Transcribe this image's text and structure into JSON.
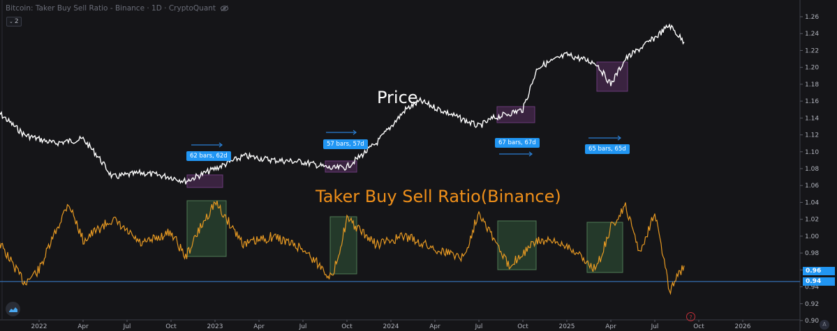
{
  "header": {
    "title": "Bitcoin: Taker Buy Sell Ratio - Binance · 1D · CryptoQuant",
    "legend_count": "2",
    "icons": [
      "chevron-down-icon",
      "eye-off-icon"
    ]
  },
  "annotations": {
    "price_label": "Price",
    "ratio_label": "Taker Buy Sell Ratio(Binance)",
    "measure_badges": [
      {
        "label": "62 bars, 62d"
      },
      {
        "label": "57 bars, 57d"
      },
      {
        "label": "67 bars, 67d"
      },
      {
        "label": "65 bars, 65d"
      }
    ]
  },
  "price_scale": {
    "tags": [
      {
        "label": "0.96"
      },
      {
        "label": "0.94"
      }
    ],
    "auto_label": "A"
  },
  "help_label": "?",
  "colors": {
    "background": "#151518",
    "price_line": "#ffffff",
    "ratio_line": "#e89a22",
    "accent_blue": "#2196f3",
    "price_box": "#3a2340",
    "ratio_box": "#24392a",
    "hline": "#3b82d6"
  },
  "chart_data": {
    "type": "line",
    "title": "Bitcoin: Taker Buy Sell Ratio - Binance · 1D · CryptoQuant",
    "xlabel": "",
    "ylabel": "",
    "ylim": [
      0.9,
      1.27
    ],
    "y_ticks": [
      "1.26",
      "1.24",
      "1.22",
      "1.20",
      "1.18",
      "1.16",
      "1.14",
      "1.12",
      "1.10",
      "1.08",
      "1.06",
      "1.04",
      "1.02",
      "1.00",
      "0.98",
      "0.96",
      "0.94",
      "0.92",
      "0.90"
    ],
    "x_ticks": [
      "2022",
      "Apr",
      "Jul",
      "Oct",
      "2023",
      "Apr",
      "Jul",
      "Oct",
      "2024",
      "Apr",
      "Jul",
      "Oct",
      "2025",
      "Apr",
      "Jul",
      "Oct",
      "2026"
    ],
    "grid": false,
    "legend": "none",
    "horizontal_line": 0.945,
    "series": [
      {
        "name": "Price (scaled overlay)",
        "x": [
          "2021-10",
          "2021-12",
          "2022-02",
          "2022-04",
          "2022-05",
          "2022-06",
          "2022-08",
          "2022-10",
          "2022-11",
          "2023-01",
          "2023-03",
          "2023-05",
          "2023-07",
          "2023-09",
          "2023-10",
          "2023-12",
          "2024-02",
          "2024-03",
          "2024-05",
          "2024-07",
          "2024-08",
          "2024-10",
          "2024-11",
          "2025-01",
          "2025-03",
          "2025-04",
          "2025-05",
          "2025-07",
          "2025-08",
          "2025-09"
        ],
        "values": [
          1.15,
          1.12,
          1.11,
          1.115,
          1.095,
          1.07,
          1.075,
          1.07,
          1.065,
          1.08,
          1.095,
          1.09,
          1.088,
          1.08,
          1.082,
          1.11,
          1.15,
          1.16,
          1.145,
          1.13,
          1.14,
          1.15,
          1.2,
          1.215,
          1.205,
          1.18,
          1.21,
          1.235,
          1.25,
          1.23
        ]
      },
      {
        "name": "Taker Buy Sell Ratio (Binance)",
        "x": [
          "2021-10",
          "2021-12",
          "2022-01",
          "2022-03",
          "2022-04",
          "2022-06",
          "2022-08",
          "2022-10",
          "2022-11",
          "2022-12",
          "2023-01",
          "2023-03",
          "2023-05",
          "2023-07",
          "2023-09",
          "2023-10",
          "2023-12",
          "2024-02",
          "2024-04",
          "2024-06",
          "2024-07",
          "2024-09",
          "2024-11",
          "2025-01",
          "2025-03",
          "2025-04",
          "2025-05",
          "2025-06",
          "2025-07",
          "2025-08",
          "2025-09"
        ],
        "values": [
          1.0,
          0.945,
          0.96,
          1.04,
          0.995,
          1.02,
          0.99,
          1.005,
          0.975,
          1.01,
          1.04,
          0.99,
          1.0,
          0.985,
          0.95,
          1.02,
          0.99,
          1.0,
          0.985,
          0.975,
          1.03,
          0.965,
          0.995,
          0.99,
          0.96,
          1.01,
          1.035,
          0.98,
          1.03,
          0.935,
          0.965
        ]
      }
    ],
    "highlight_regions": [
      {
        "series": "Price",
        "start": "2022-11",
        "end": "2023-01",
        "bars": 62
      },
      {
        "series": "Price",
        "start": "2023-09",
        "end": "2023-11",
        "bars": 57
      },
      {
        "series": "Price",
        "start": "2024-08",
        "end": "2024-10",
        "bars": 67
      },
      {
        "series": "Price",
        "start": "2025-03",
        "end": "2025-05",
        "bars": 65
      }
    ]
  }
}
